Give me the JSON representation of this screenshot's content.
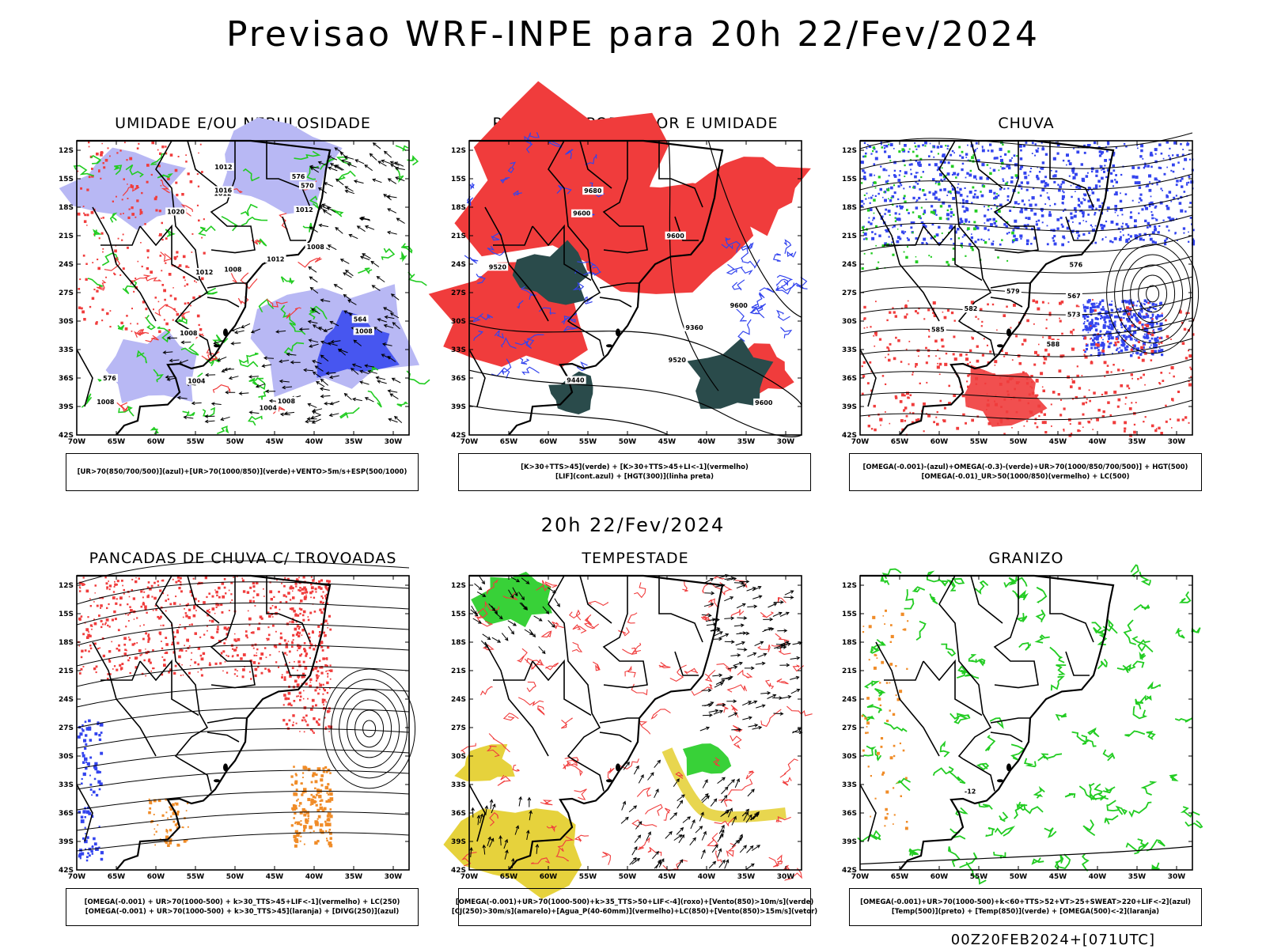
{
  "header": {
    "title": "Previsao WRF-INPE  para 20h 22/Fev/2024"
  },
  "middle_title": "20h 22/Fev/2024",
  "footer_text": "00Z20FEB2024+[071UTC]",
  "axes": {
    "lat_labels": [
      "12S",
      "15S",
      "18S",
      "21S",
      "24S",
      "27S",
      "30S",
      "33S",
      "36S",
      "39S",
      "42S"
    ],
    "lon_labels": [
      "70W",
      "65W",
      "60W",
      "55W",
      "50W",
      "45W",
      "40W",
      "35W",
      "30W"
    ]
  },
  "colors": {
    "red": "#f03c3c",
    "green": "#22cc22",
    "blue": "#3344ee",
    "lightblue": "#b8b8f4",
    "darkteal": "#2a4b4b",
    "yellow": "#e6d23c",
    "orange": "#f08c28",
    "black": "#000000"
  },
  "panels": [
    {
      "id": "umidade",
      "title": "UMIDADE E/OU NEBULOSIDADE",
      "legend": [
        "[UR>70(850/700/500)](azul)+[UR>70(1000/850)](verde)+VENTO>5m/s+ESP(500/1000)"
      ],
      "contour_labels": [
        "1008",
        "1008",
        "1008",
        "1012",
        "1004",
        "1008",
        "1012",
        "1004",
        "1012",
        "1016",
        "1012",
        "1012",
        "1020",
        "1008",
        "576",
        "576",
        "570",
        "564",
        "1008"
      ]
    },
    {
      "id": "pancadas-calor",
      "title": "PANCADAS POR CALOR E UMIDADE",
      "legend": [
        "[K>30+TTS>45](verde) + [K>30+TTS>45+LI<-1](vermelho)",
        "[LIF](cont.azul) + [HGT(300)](linha preta)"
      ],
      "contour_labels": [
        "9600",
        "9600",
        "9520",
        "9600",
        "9600",
        "9520",
        "9440",
        "9360",
        "9680"
      ]
    },
    {
      "id": "chuva",
      "title": "CHUVA",
      "legend": [
        "[OMEGA(-0.001)-(azul)+OMEGA(-0.3)-(verde)+UR>70(1000/850/700/500)] + HGT(500)",
        "[OMEGA(-0.01)_UR>50(1000/850)(vermelho) + LC(500)"
      ],
      "contour_labels": [
        "582",
        "588",
        "576",
        "573",
        "567",
        "579",
        "585"
      ]
    },
    {
      "id": "pancadas-trovoadas",
      "title": "PANCADAS DE CHUVA C/ TROVOADAS",
      "legend": [
        "[OMEGA(-0.001) + UR>70(1000-500) + k>30_TTS>45+LIF<-1](vermelho) + LC(250)",
        "[OMEGA(-0.001) + UR>70(1000-500) + k>30_TTS>45](laranja) + [DIVG(250)](azul)"
      ],
      "contour_labels": []
    },
    {
      "id": "tempestade",
      "title": "TEMPESTADE",
      "legend": [
        "[OMEGA(-0.001)+UR>70(1000-500)+k>35_TTS>50+LIF<-4](roxo)+[Vento(850)>10m/s](verde)",
        "[CJ(250)>30m/s](amarelo)+[Agua_P(40-60mm)](vermelho)+LC(850)+[Vento(850)>15m/s](vetor)"
      ],
      "contour_labels": []
    },
    {
      "id": "granizo",
      "title": "GRANIZO",
      "legend": [
        "[OMEGA(-0.001)+UR>70(1000-500)+k<60+TTS>52+VT>25+SWEAT>220+LIF<-2](azul)",
        "[Temp(500)](preto) + [Temp(850)](verde) + [OMEGA(500)<-2](laranja)"
      ],
      "contour_labels": [
        "-12"
      ]
    }
  ]
}
